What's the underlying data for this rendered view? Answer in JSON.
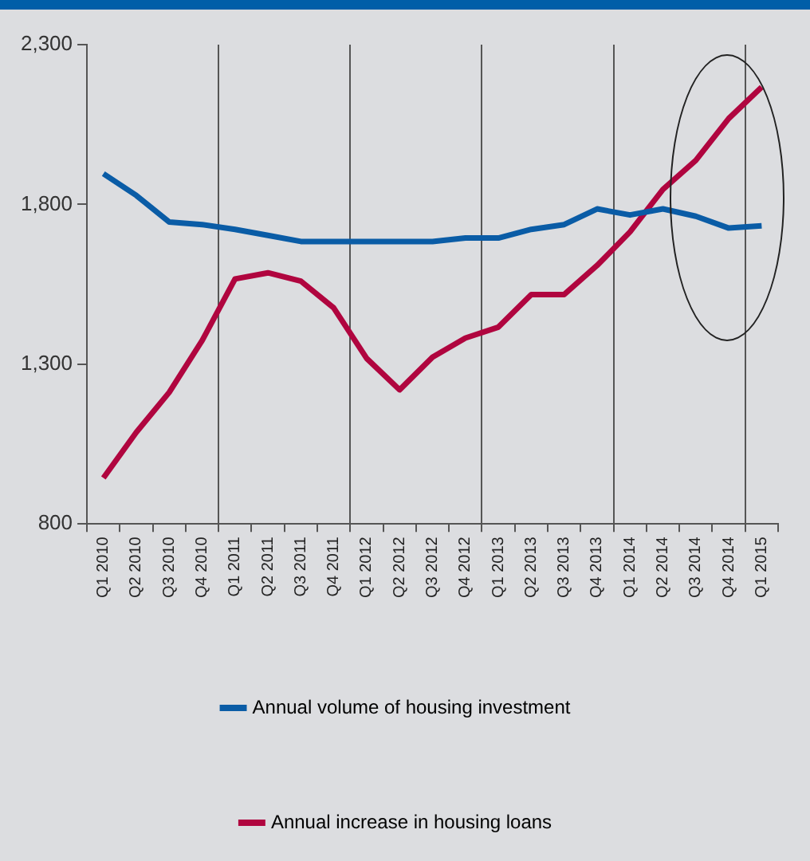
{
  "chart_data": {
    "type": "line",
    "categories": [
      "Q1 2010",
      "Q2 2010",
      "Q3 2010",
      "Q4 2010",
      "Q1 2011",
      "Q2 2011",
      "Q3 2011",
      "Q4 2011",
      "Q1 2012",
      "Q2 2012",
      "Q3 2012",
      "Q4 2012",
      "Q1 2013",
      "Q2 2013",
      "Q3 2013",
      "Q4 2013",
      "Q1 2014",
      "Q2 2014",
      "Q3 2014",
      "Q4 2014",
      "Q1 2015"
    ],
    "series": [
      {
        "name": "Annual volume of housing investment",
        "color": "#0a5ca6",
        "values": [
          1896,
          1828,
          1745,
          1737,
          1722,
          1703,
          1684,
          1684,
          1684,
          1684,
          1684,
          1695,
          1695,
          1722,
          1737,
          1786,
          1767,
          1786,
          1763,
          1726,
          1733
        ]
      },
      {
        "name": "Annual increase in housing loans",
        "color": "#b0053f",
        "values": [
          944,
          1087,
          1212,
          1374,
          1567,
          1586,
          1560,
          1476,
          1318,
          1220,
          1322,
          1382,
          1416,
          1518,
          1518,
          1609,
          1714,
          1847,
          1938,
          2069,
          2167
        ]
      }
    ],
    "ylim": [
      800,
      2300
    ],
    "yticks": [
      800,
      {
        "value": 1300,
        "label": "1,300"
      },
      {
        "value": 1800,
        "label": "1,800"
      },
      {
        "value": 2300,
        "label": "2,300"
      }
    ],
    "grid": "x",
    "legend": "bottom",
    "marker": "none",
    "line_style": "solid"
  }
}
